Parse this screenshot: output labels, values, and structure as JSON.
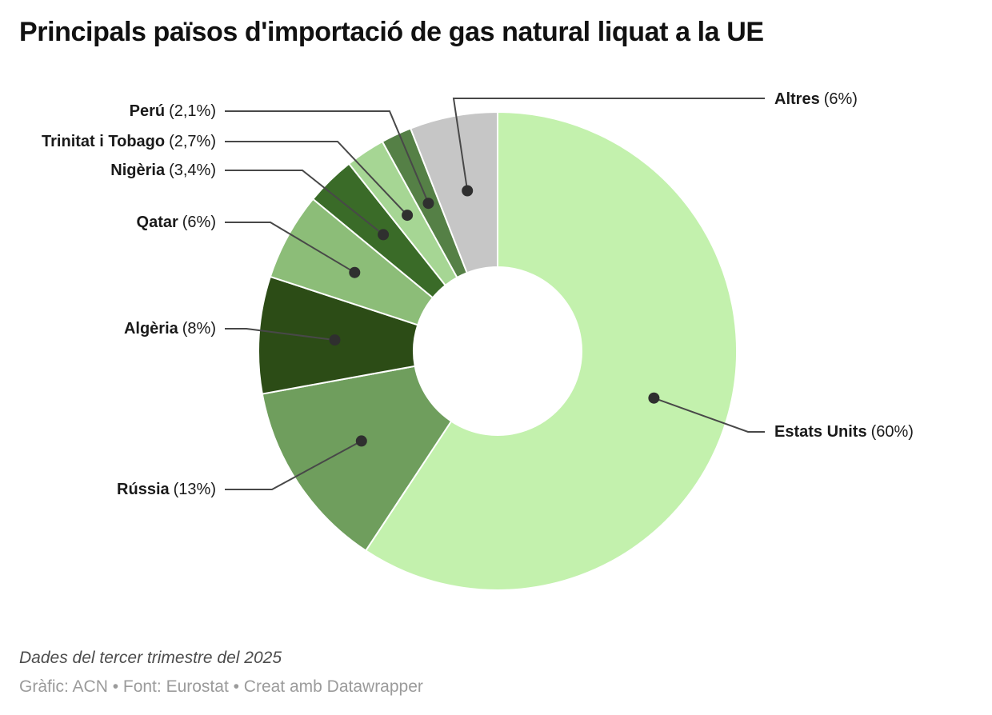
{
  "chart_data": {
    "type": "pie",
    "subtype": "donut",
    "title": "Principals països d'importació de gas natural liquat a la UE",
    "unit": "%",
    "direction": "clockwise",
    "start_angle_deg": 0,
    "legend_position": "direct-callout-labels",
    "slices": [
      {
        "name": "Estats Units",
        "value": 60,
        "pct_label": "(60%)",
        "color": "#c3f1ad"
      },
      {
        "name": "Rússia",
        "value": 13,
        "pct_label": "(13%)",
        "color": "#6f9e5d"
      },
      {
        "name": "Algèria",
        "value": 8,
        "pct_label": "(8%)",
        "color": "#2c4c16"
      },
      {
        "name": "Qatar",
        "value": 6,
        "pct_label": "(6%)",
        "color": "#8cbd78"
      },
      {
        "name": "Nigèria",
        "value": 3.4,
        "pct_label": "(3,4%)",
        "color": "#3a6b28"
      },
      {
        "name": "Trinitat i Tobago",
        "value": 2.7,
        "pct_label": "(2,7%)",
        "color": "#a6d694"
      },
      {
        "name": "Perú",
        "value": 2.1,
        "pct_label": "(2,1%)",
        "color": "#558046"
      },
      {
        "name": "Altres",
        "value": 6,
        "pct_label": "(6%)",
        "color": "#c6c6c6"
      }
    ],
    "colors": {
      "leader_line": "#484848",
      "leader_dot": "#2f2f2f",
      "slice_separator": "#ffffff"
    }
  },
  "footer": {
    "note": "Dades del tercer trimestre del 2025",
    "byline": "Gràfic: ACN • Font: Eurostat • Creat amb Datawrapper"
  }
}
